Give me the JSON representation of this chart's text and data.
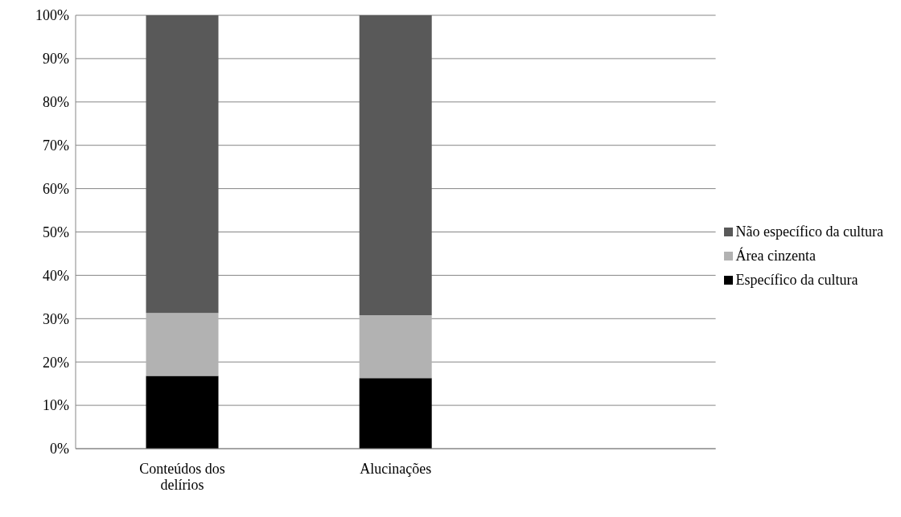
{
  "chart_data": {
    "type": "bar",
    "stacked": true,
    "categories": [
      "Conteúdos dos delírios",
      "Alucinações",
      null
    ],
    "series": [
      {
        "name": "Específico da cultura",
        "color": "#000000",
        "values": [
          16.8,
          16.3,
          null
        ]
      },
      {
        "name": "Área cinzenta",
        "color": "#b2b2b2",
        "values": [
          14.5,
          14.5,
          null
        ]
      },
      {
        "name": "Não específico da cultura",
        "color": "#595959",
        "values": [
          68.7,
          69.2,
          null
        ]
      }
    ],
    "ylim": [
      0,
      100
    ],
    "yticks": [
      {
        "value": 0,
        "label": "0%"
      },
      {
        "value": 10,
        "label": "10%"
      },
      {
        "value": 20,
        "label": "20%"
      },
      {
        "value": 30,
        "label": "30%"
      },
      {
        "value": 40,
        "label": "40%"
      },
      {
        "value": 50,
        "label": "50%"
      },
      {
        "value": 60,
        "label": "60%"
      },
      {
        "value": 70,
        "label": "70%"
      },
      {
        "value": 80,
        "label": "80%"
      },
      {
        "value": 90,
        "label": "90%"
      },
      {
        "value": 100,
        "label": "100%"
      }
    ],
    "grid": "y",
    "legend": "right"
  }
}
